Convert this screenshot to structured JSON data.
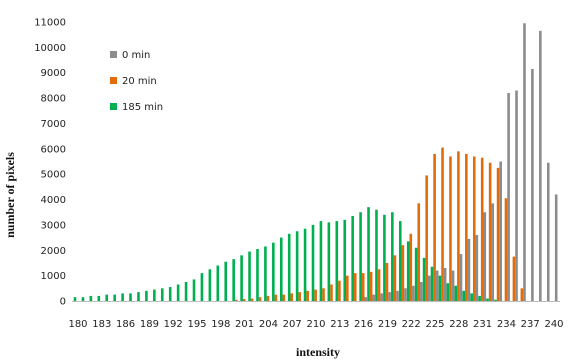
{
  "chart_data": {
    "type": "bar",
    "xlabel": "intensity",
    "ylabel": "number of pixels",
    "ylim": [
      0,
      11000
    ],
    "yticks": [
      0,
      1000,
      2000,
      3000,
      4000,
      5000,
      6000,
      7000,
      8000,
      9000,
      10000,
      11000
    ],
    "xticks": [
      180,
      183,
      186,
      189,
      192,
      195,
      198,
      201,
      204,
      207,
      210,
      213,
      216,
      219,
      222,
      225,
      228,
      231,
      234,
      237,
      240
    ],
    "xlim": [
      180,
      240
    ],
    "grid": false,
    "legend_placement": "top-left",
    "series": [
      {
        "name": "0 min",
        "color": "#8c8c8c",
        "x": [
          216,
          217,
          218,
          219,
          220,
          221,
          222,
          223,
          224,
          225,
          226,
          227,
          228,
          229,
          230,
          231,
          232,
          233,
          234,
          235,
          236,
          237,
          238,
          239,
          240
        ],
        "values": [
          150,
          250,
          300,
          350,
          400,
          500,
          600,
          750,
          1000,
          1200,
          1300,
          1200,
          1850,
          2450,
          2600,
          3500,
          3850,
          5500,
          8200,
          8300,
          10950,
          9150,
          10650,
          5450,
          4200
        ]
      },
      {
        "name": "20 min",
        "color": "#e36c0a",
        "x": [
          200,
          201,
          202,
          203,
          204,
          205,
          206,
          207,
          208,
          209,
          210,
          211,
          212,
          213,
          214,
          215,
          216,
          217,
          218,
          219,
          220,
          221,
          222,
          223,
          224,
          225,
          226,
          227,
          228,
          229,
          230,
          231,
          232,
          233,
          234,
          235,
          236
        ],
        "values": [
          50,
          80,
          100,
          150,
          200,
          250,
          250,
          300,
          350,
          400,
          450,
          500,
          650,
          800,
          1000,
          1100,
          1100,
          1150,
          1250,
          1500,
          1800,
          2200,
          2650,
          3850,
          4950,
          5800,
          6050,
          5700,
          5900,
          5800,
          5700,
          5650,
          5450,
          5250,
          4050,
          1750,
          500
        ]
      },
      {
        "name": "185 min",
        "color": "#00b050",
        "x": [
          180,
          181,
          182,
          183,
          184,
          185,
          186,
          187,
          188,
          189,
          190,
          191,
          192,
          193,
          194,
          195,
          196,
          197,
          198,
          199,
          200,
          201,
          202,
          203,
          204,
          205,
          206,
          207,
          208,
          209,
          210,
          211,
          212,
          213,
          214,
          215,
          216,
          217,
          218,
          219,
          220,
          221,
          222,
          223,
          224,
          225,
          226,
          227,
          228,
          229,
          230,
          231,
          232,
          233
        ],
        "values": [
          150,
          150,
          200,
          200,
          250,
          250,
          300,
          300,
          350,
          400,
          450,
          500,
          550,
          650,
          750,
          850,
          1100,
          1250,
          1400,
          1550,
          1650,
          1800,
          1950,
          2050,
          2150,
          2300,
          2500,
          2650,
          2750,
          2850,
          3000,
          3150,
          3100,
          3150,
          3200,
          3350,
          3500,
          3700,
          3600,
          3400,
          3500,
          3150,
          2350,
          2100,
          1700,
          1350,
          1000,
          700,
          600,
          400,
          300,
          200,
          100,
          50
        ]
      }
    ]
  }
}
